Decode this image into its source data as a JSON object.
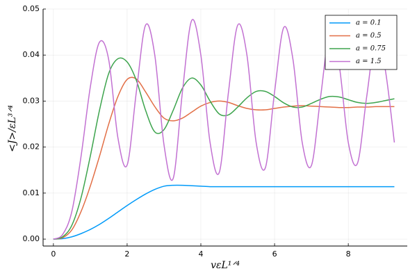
{
  "chart_data": {
    "type": "line",
    "x_label": "vεL¹ᐟ⁴",
    "y_label": "<J>/εL³ᐟ⁴",
    "x": [
      0,
      0.25,
      0.5,
      0.75,
      1.0,
      1.25,
      1.5,
      1.75,
      2.0,
      2.25,
      2.5,
      2.75,
      3.0,
      3.25,
      3.5,
      3.75,
      4.0,
      4.25,
      4.5,
      4.75,
      5.0,
      5.25,
      5.5,
      5.75,
      6.0,
      6.25,
      6.5,
      6.75,
      7.0,
      7.25,
      7.5,
      7.75,
      8.0,
      8.25,
      8.5,
      8.75,
      9.0,
      9.25
    ],
    "series": [
      {
        "name": "a = 0.1",
        "color": "#009af9",
        "values": [
          0,
          0.0001,
          0.0005,
          0.0012,
          0.0021,
          0.0032,
          0.0045,
          0.0059,
          0.0073,
          0.0086,
          0.0098,
          0.0108,
          0.0115,
          0.0117,
          0.0117,
          0.0116,
          0.0115,
          0.0114,
          0.0114,
          0.0114,
          0.0114,
          0.0114,
          0.0114,
          0.0114,
          0.0114,
          0.0114,
          0.0114,
          0.0114,
          0.0114,
          0.0114,
          0.0114,
          0.0114,
          0.0114,
          0.0114,
          0.0114,
          0.0114,
          0.0114,
          0.0114
        ]
      },
      {
        "name": "a = 0.5",
        "color": "#e26f46",
        "values": [
          0,
          0.0003,
          0.002,
          0.006,
          0.0115,
          0.018,
          0.025,
          0.031,
          0.0347,
          0.0348,
          0.032,
          0.0288,
          0.0263,
          0.0257,
          0.0263,
          0.0276,
          0.0289,
          0.0297,
          0.03,
          0.0297,
          0.029,
          0.0284,
          0.0281,
          0.0281,
          0.0284,
          0.0287,
          0.0289,
          0.029,
          0.0289,
          0.0288,
          0.0287,
          0.0286,
          0.0286,
          0.0287,
          0.0287,
          0.0288,
          0.0288,
          0.0288
        ]
      },
      {
        "name": "a = 0.75",
        "color": "#3da44d",
        "values": [
          0,
          0.0005,
          0.003,
          0.009,
          0.018,
          0.028,
          0.036,
          0.0392,
          0.0385,
          0.0345,
          0.028,
          0.0233,
          0.0238,
          0.028,
          0.0328,
          0.035,
          0.0335,
          0.03,
          0.0272,
          0.027,
          0.0287,
          0.0307,
          0.0321,
          0.0321,
          0.031,
          0.0296,
          0.0287,
          0.0287,
          0.0295,
          0.0304,
          0.031,
          0.0309,
          0.0303,
          0.0297,
          0.0295,
          0.0297,
          0.0301,
          0.0305
        ]
      },
      {
        "name": "a = 1.5",
        "color": "#c271d2",
        "values": [
          0,
          0.001,
          0.006,
          0.018,
          0.033,
          0.0428,
          0.039,
          0.022,
          0.0161,
          0.032,
          0.0465,
          0.04,
          0.0205,
          0.0132,
          0.032,
          0.0475,
          0.04,
          0.021,
          0.0145,
          0.032,
          0.0465,
          0.04,
          0.021,
          0.0155,
          0.032,
          0.046,
          0.039,
          0.021,
          0.016,
          0.031,
          0.045,
          0.038,
          0.021,
          0.0165,
          0.031,
          0.044,
          0.037,
          0.021
        ]
      }
    ],
    "xlim": [
      -0.28,
      9.6
    ],
    "ylim": [
      -0.0015,
      0.05
    ],
    "xticks": [
      0,
      2,
      4,
      6,
      8
    ],
    "yticks": [
      {
        "value": 0,
        "label": "0.00"
      },
      0.01,
      0.02,
      0.03,
      0.04,
      0.05
    ],
    "grid": true,
    "legend": "top-right"
  }
}
